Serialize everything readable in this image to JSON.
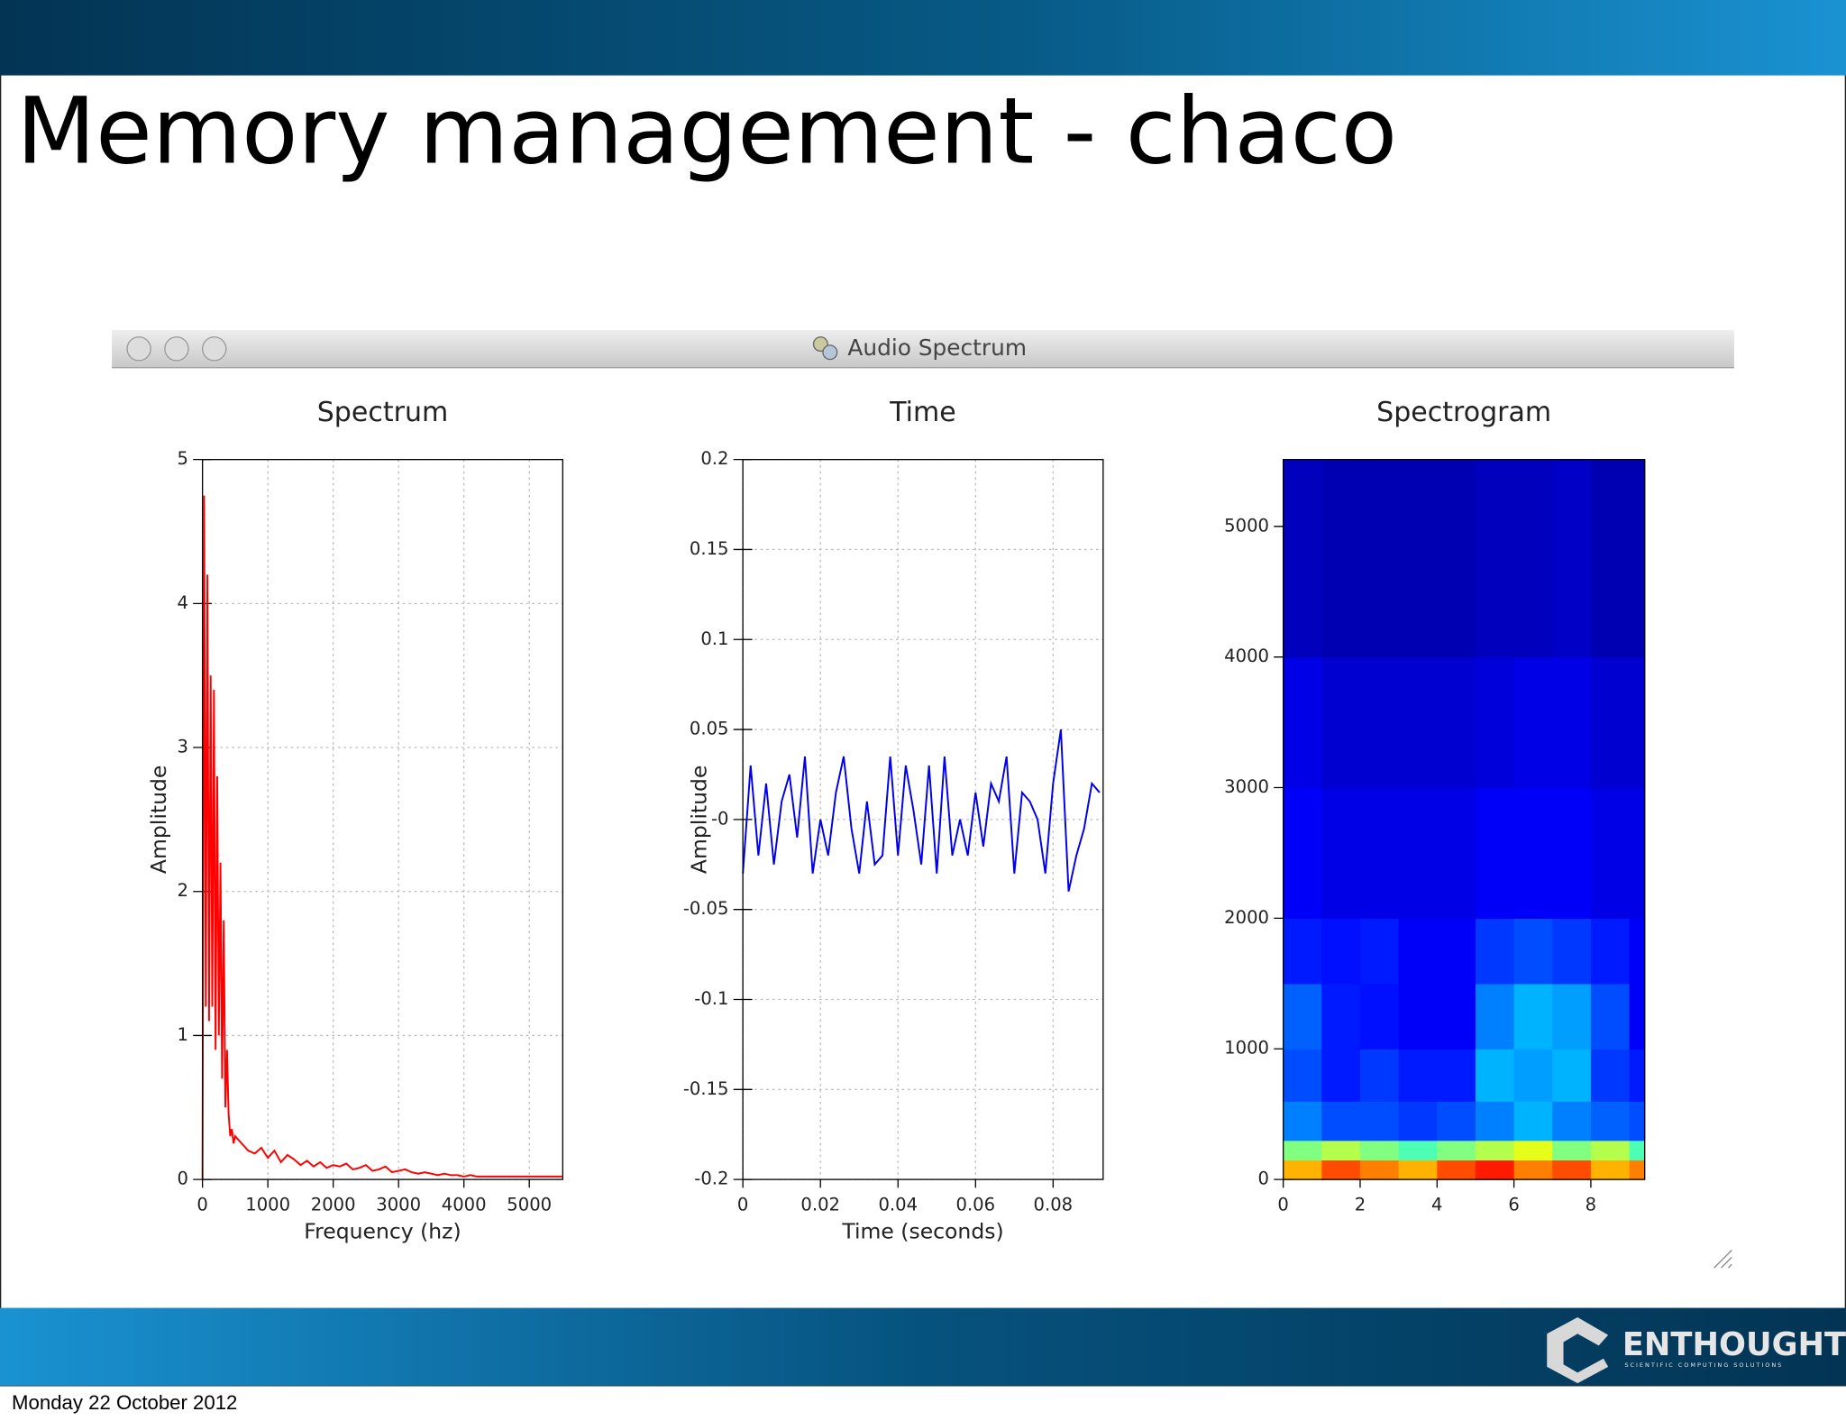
{
  "slide": {
    "title": "Memory management - chaco",
    "window_title": "Audio Spectrum",
    "footer_date": "Monday 22 October 2012",
    "logo": {
      "name": "ENTHOUGHT",
      "tagline": "SCIENTIFIC COMPUTING SOLUTIONS"
    }
  },
  "chart_data": [
    {
      "type": "line",
      "title": "Spectrum",
      "xlabel": "Frequency (hz)",
      "ylabel": "Amplitude",
      "color": "#ff0000",
      "grid": true,
      "xlim": [
        0,
        5512
      ],
      "xticks": [
        0,
        1000,
        2000,
        3000,
        4000,
        5000
      ],
      "ylim": [
        0,
        5
      ],
      "yticks": [
        0,
        1,
        2,
        3,
        4,
        5
      ],
      "x": [
        0,
        25,
        50,
        75,
        100,
        125,
        150,
        175,
        200,
        225,
        250,
        275,
        300,
        325,
        350,
        375,
        400,
        425,
        450,
        475,
        500,
        600,
        700,
        800,
        900,
        1000,
        1100,
        1200,
        1300,
        1400,
        1500,
        1600,
        1700,
        1800,
        1900,
        2000,
        2100,
        2200,
        2300,
        2400,
        2500,
        2600,
        2700,
        2800,
        2900,
        3000,
        3100,
        3200,
        3300,
        3400,
        3500,
        3600,
        3700,
        3800,
        3900,
        4000,
        4100,
        4200,
        4300,
        4400,
        4500,
        4600,
        4700,
        4800,
        4900,
        5000,
        5100,
        5200,
        5300,
        5400,
        5500
      ],
      "values": [
        0,
        4.75,
        1.2,
        4.2,
        1.1,
        3.5,
        1.2,
        3.4,
        0.9,
        2.8,
        1.0,
        2.2,
        0.7,
        1.8,
        0.5,
        0.9,
        0.45,
        0.3,
        0.35,
        0.25,
        0.3,
        0.25,
        0.2,
        0.18,
        0.22,
        0.15,
        0.2,
        0.12,
        0.17,
        0.14,
        0.1,
        0.13,
        0.09,
        0.12,
        0.08,
        0.1,
        0.09,
        0.11,
        0.07,
        0.08,
        0.1,
        0.06,
        0.07,
        0.09,
        0.05,
        0.06,
        0.07,
        0.05,
        0.04,
        0.05,
        0.04,
        0.03,
        0.04,
        0.03,
        0.03,
        0.02,
        0.03,
        0.02,
        0.02,
        0.02,
        0.02,
        0.02,
        0.02,
        0.02,
        0.02,
        0.02,
        0.02,
        0.02,
        0.02,
        0.02,
        0.02
      ]
    },
    {
      "type": "line",
      "title": "Time",
      "xlabel": "Time (seconds)",
      "ylabel": "Amplitude",
      "color": "#0000ee",
      "grid": true,
      "xlim": [
        0,
        0.0929
      ],
      "xticks": [
        0,
        0.02,
        0.04,
        0.06,
        0.08
      ],
      "ylim": [
        -0.2,
        0.2
      ],
      "yticks": [
        -0.2,
        -0.15,
        -0.1,
        -0.05,
        {
          "value": 0,
          "label": "-0"
        },
        0.05,
        0.1,
        0.15,
        0.2
      ],
      "x": [
        0,
        0.002,
        0.004,
        0.006,
        0.008,
        0.01,
        0.012,
        0.014,
        0.016,
        0.018,
        0.02,
        0.022,
        0.024,
        0.026,
        0.028,
        0.03,
        0.032,
        0.034,
        0.036,
        0.038,
        0.04,
        0.042,
        0.044,
        0.046,
        0.048,
        0.05,
        0.052,
        0.054,
        0.056,
        0.058,
        0.06,
        0.062,
        0.064,
        0.066,
        0.068,
        0.07,
        0.072,
        0.074,
        0.076,
        0.078,
        0.08,
        0.082,
        0.084,
        0.086,
        0.088,
        0.09,
        0.092
      ],
      "values": [
        -0.03,
        0.03,
        -0.02,
        0.02,
        -0.025,
        0.01,
        0.025,
        -0.01,
        0.035,
        -0.03,
        0,
        -0.02,
        0.015,
        0.035,
        -0.005,
        -0.03,
        0.01,
        -0.025,
        -0.02,
        0.035,
        -0.02,
        0.03,
        0.005,
        -0.025,
        0.03,
        -0.03,
        0.035,
        -0.02,
        0,
        -0.02,
        0.015,
        -0.015,
        0.02,
        0.01,
        0.035,
        -0.03,
        0.015,
        0.01,
        0,
        -0.03,
        0.02,
        0.05,
        -0.04,
        -0.02,
        -0.005,
        0.02,
        0.015
      ]
    },
    {
      "type": "heatmap",
      "title": "Spectrogram",
      "colormap": "jet",
      "zlim": [
        0,
        1
      ],
      "xlim": [
        0,
        9.4
      ],
      "xticks": [
        0,
        2,
        4,
        6,
        8
      ],
      "ylim": [
        0,
        5512
      ],
      "yticks": [
        0,
        1000,
        2000,
        3000,
        4000,
        5000
      ],
      "x_edges": [
        0,
        1,
        2,
        3,
        4,
        5,
        6,
        7,
        8,
        9,
        9.4
      ],
      "y_edges": [
        0,
        150,
        300,
        600,
        1000,
        1500,
        2000,
        3000,
        4000,
        5512
      ],
      "z": [
        [
          0.7,
          0.8,
          0.75,
          0.7,
          0.8,
          0.85,
          0.75,
          0.8,
          0.7,
          0.75
        ],
        [
          0.5,
          0.55,
          0.5,
          0.45,
          0.5,
          0.55,
          0.6,
          0.5,
          0.55,
          0.45
        ],
        [
          0.25,
          0.2,
          0.2,
          0.18,
          0.2,
          0.25,
          0.3,
          0.25,
          0.22,
          0.2
        ],
        [
          0.2,
          0.15,
          0.18,
          0.15,
          0.15,
          0.3,
          0.28,
          0.3,
          0.18,
          0.15
        ],
        [
          0.22,
          0.15,
          0.14,
          0.12,
          0.12,
          0.25,
          0.3,
          0.28,
          0.2,
          0.12
        ],
        [
          0.15,
          0.14,
          0.15,
          0.12,
          0.12,
          0.18,
          0.2,
          0.18,
          0.15,
          0.12
        ],
        [
          0.12,
          0.1,
          0.1,
          0.1,
          0.1,
          0.12,
          0.12,
          0.12,
          0.1,
          0.1
        ],
        [
          0.1,
          0.08,
          0.08,
          0.08,
          0.08,
          0.09,
          0.1,
          0.1,
          0.08,
          0.08
        ],
        [
          0.06,
          0.05,
          0.05,
          0.05,
          0.05,
          0.06,
          0.06,
          0.07,
          0.05,
          0.05
        ]
      ]
    }
  ]
}
